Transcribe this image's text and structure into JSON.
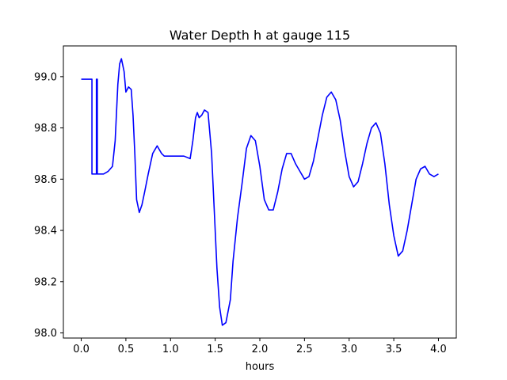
{
  "chart_data": {
    "type": "line",
    "title": "Water Depth h at gauge 115",
    "xlabel": "hours",
    "ylabel": "",
    "xlim": [
      -0.2,
      4.2
    ],
    "ylim": [
      97.98,
      99.12
    ],
    "xticks": [
      0.0,
      0.5,
      1.0,
      1.5,
      2.0,
      2.5,
      3.0,
      3.5,
      4.0
    ],
    "xtick_labels": [
      "0.0",
      "0.5",
      "1.0",
      "1.5",
      "2.0",
      "2.5",
      "3.0",
      "3.5",
      "4.0"
    ],
    "yticks": [
      98.0,
      98.2,
      98.4,
      98.6,
      98.8,
      99.0
    ],
    "ytick_labels": [
      "98.0",
      "98.2",
      "98.4",
      "98.6",
      "98.8",
      "99.0"
    ],
    "grid": false,
    "series": [
      {
        "color": "#0000ff",
        "x": [
          0.0,
          0.12,
          0.12,
          0.17,
          0.17,
          0.18,
          0.18,
          0.25,
          0.3,
          0.35,
          0.38,
          0.41,
          0.43,
          0.45,
          0.48,
          0.5,
          0.53,
          0.56,
          0.58,
          0.6,
          0.62,
          0.65,
          0.68,
          0.71,
          0.75,
          0.8,
          0.85,
          0.9,
          0.93,
          0.97,
          1.0,
          1.05,
          1.15,
          1.22,
          1.25,
          1.28,
          1.3,
          1.32,
          1.35,
          1.38,
          1.42,
          1.46,
          1.48,
          1.5,
          1.52,
          1.55,
          1.58,
          1.62,
          1.67,
          1.7,
          1.75,
          1.8,
          1.85,
          1.9,
          1.95,
          2.0,
          2.05,
          2.1,
          2.15,
          2.2,
          2.25,
          2.3,
          2.35,
          2.4,
          2.45,
          2.5,
          2.55,
          2.6,
          2.65,
          2.7,
          2.75,
          2.8,
          2.85,
          2.9,
          2.95,
          3.0,
          3.05,
          3.1,
          3.15,
          3.2,
          3.25,
          3.3,
          3.35,
          3.4,
          3.45,
          3.5,
          3.55,
          3.6,
          3.65,
          3.7,
          3.75,
          3.8,
          3.85,
          3.9,
          3.95,
          4.0
        ],
        "y": [
          98.99,
          98.99,
          98.62,
          98.62,
          98.99,
          98.99,
          98.62,
          98.62,
          98.63,
          98.65,
          98.75,
          98.97,
          99.05,
          99.07,
          99.02,
          98.94,
          98.96,
          98.95,
          98.85,
          98.7,
          98.52,
          98.47,
          98.5,
          98.55,
          98.62,
          98.7,
          98.73,
          98.7,
          98.69,
          98.69,
          98.69,
          98.69,
          98.69,
          98.68,
          98.75,
          98.84,
          98.86,
          98.84,
          98.85,
          98.87,
          98.86,
          98.7,
          98.55,
          98.4,
          98.25,
          98.1,
          98.03,
          98.04,
          98.13,
          98.28,
          98.45,
          98.58,
          98.72,
          98.77,
          98.75,
          98.65,
          98.52,
          98.48,
          98.48,
          98.55,
          98.64,
          98.7,
          98.7,
          98.66,
          98.63,
          98.6,
          98.61,
          98.67,
          98.76,
          98.85,
          98.92,
          98.94,
          98.91,
          98.83,
          98.71,
          98.61,
          98.57,
          98.59,
          98.66,
          98.74,
          98.8,
          98.82,
          98.78,
          98.66,
          98.5,
          98.38,
          98.3,
          98.32,
          98.4,
          98.5,
          98.6,
          98.64,
          98.65,
          98.62,
          98.61,
          98.62
        ]
      }
    ]
  }
}
